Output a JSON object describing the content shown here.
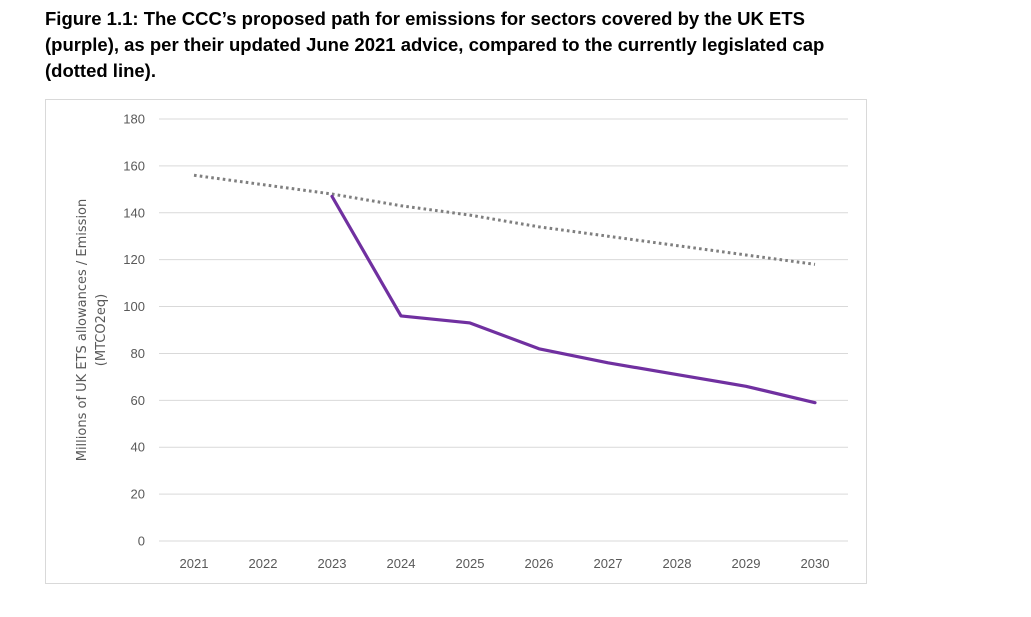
{
  "caption": {
    "line1": "Figure 1.1: The CCC’s proposed path for emissions for sectors covered by the UK ETS",
    "line2": "(purple), as per their updated June 2021 advice, compared to the currently legislated cap",
    "line3": "(dotted line)."
  },
  "chart_data": {
    "type": "line",
    "ylabel_line1": "Millions of UK ETS allowances / Emission",
    "ylabel_line2": "(MTCO2eq)",
    "xlabel": "",
    "x": [
      "2021",
      "2022",
      "2023",
      "2024",
      "2025",
      "2026",
      "2027",
      "2028",
      "2029",
      "2030"
    ],
    "ylim": [
      0,
      180
    ],
    "yticks": [
      0,
      20,
      40,
      60,
      80,
      100,
      120,
      140,
      160,
      180
    ],
    "grid": true,
    "series": [
      {
        "style": "dotted",
        "color": "#7f7f7f",
        "values": [
          156,
          152,
          148,
          143,
          139,
          134,
          130,
          126,
          122,
          118
        ]
      },
      {
        "style": "solid",
        "color": "#7030a0",
        "values": [
          null,
          null,
          147,
          96,
          93,
          82,
          76,
          71,
          66,
          59
        ]
      }
    ]
  }
}
